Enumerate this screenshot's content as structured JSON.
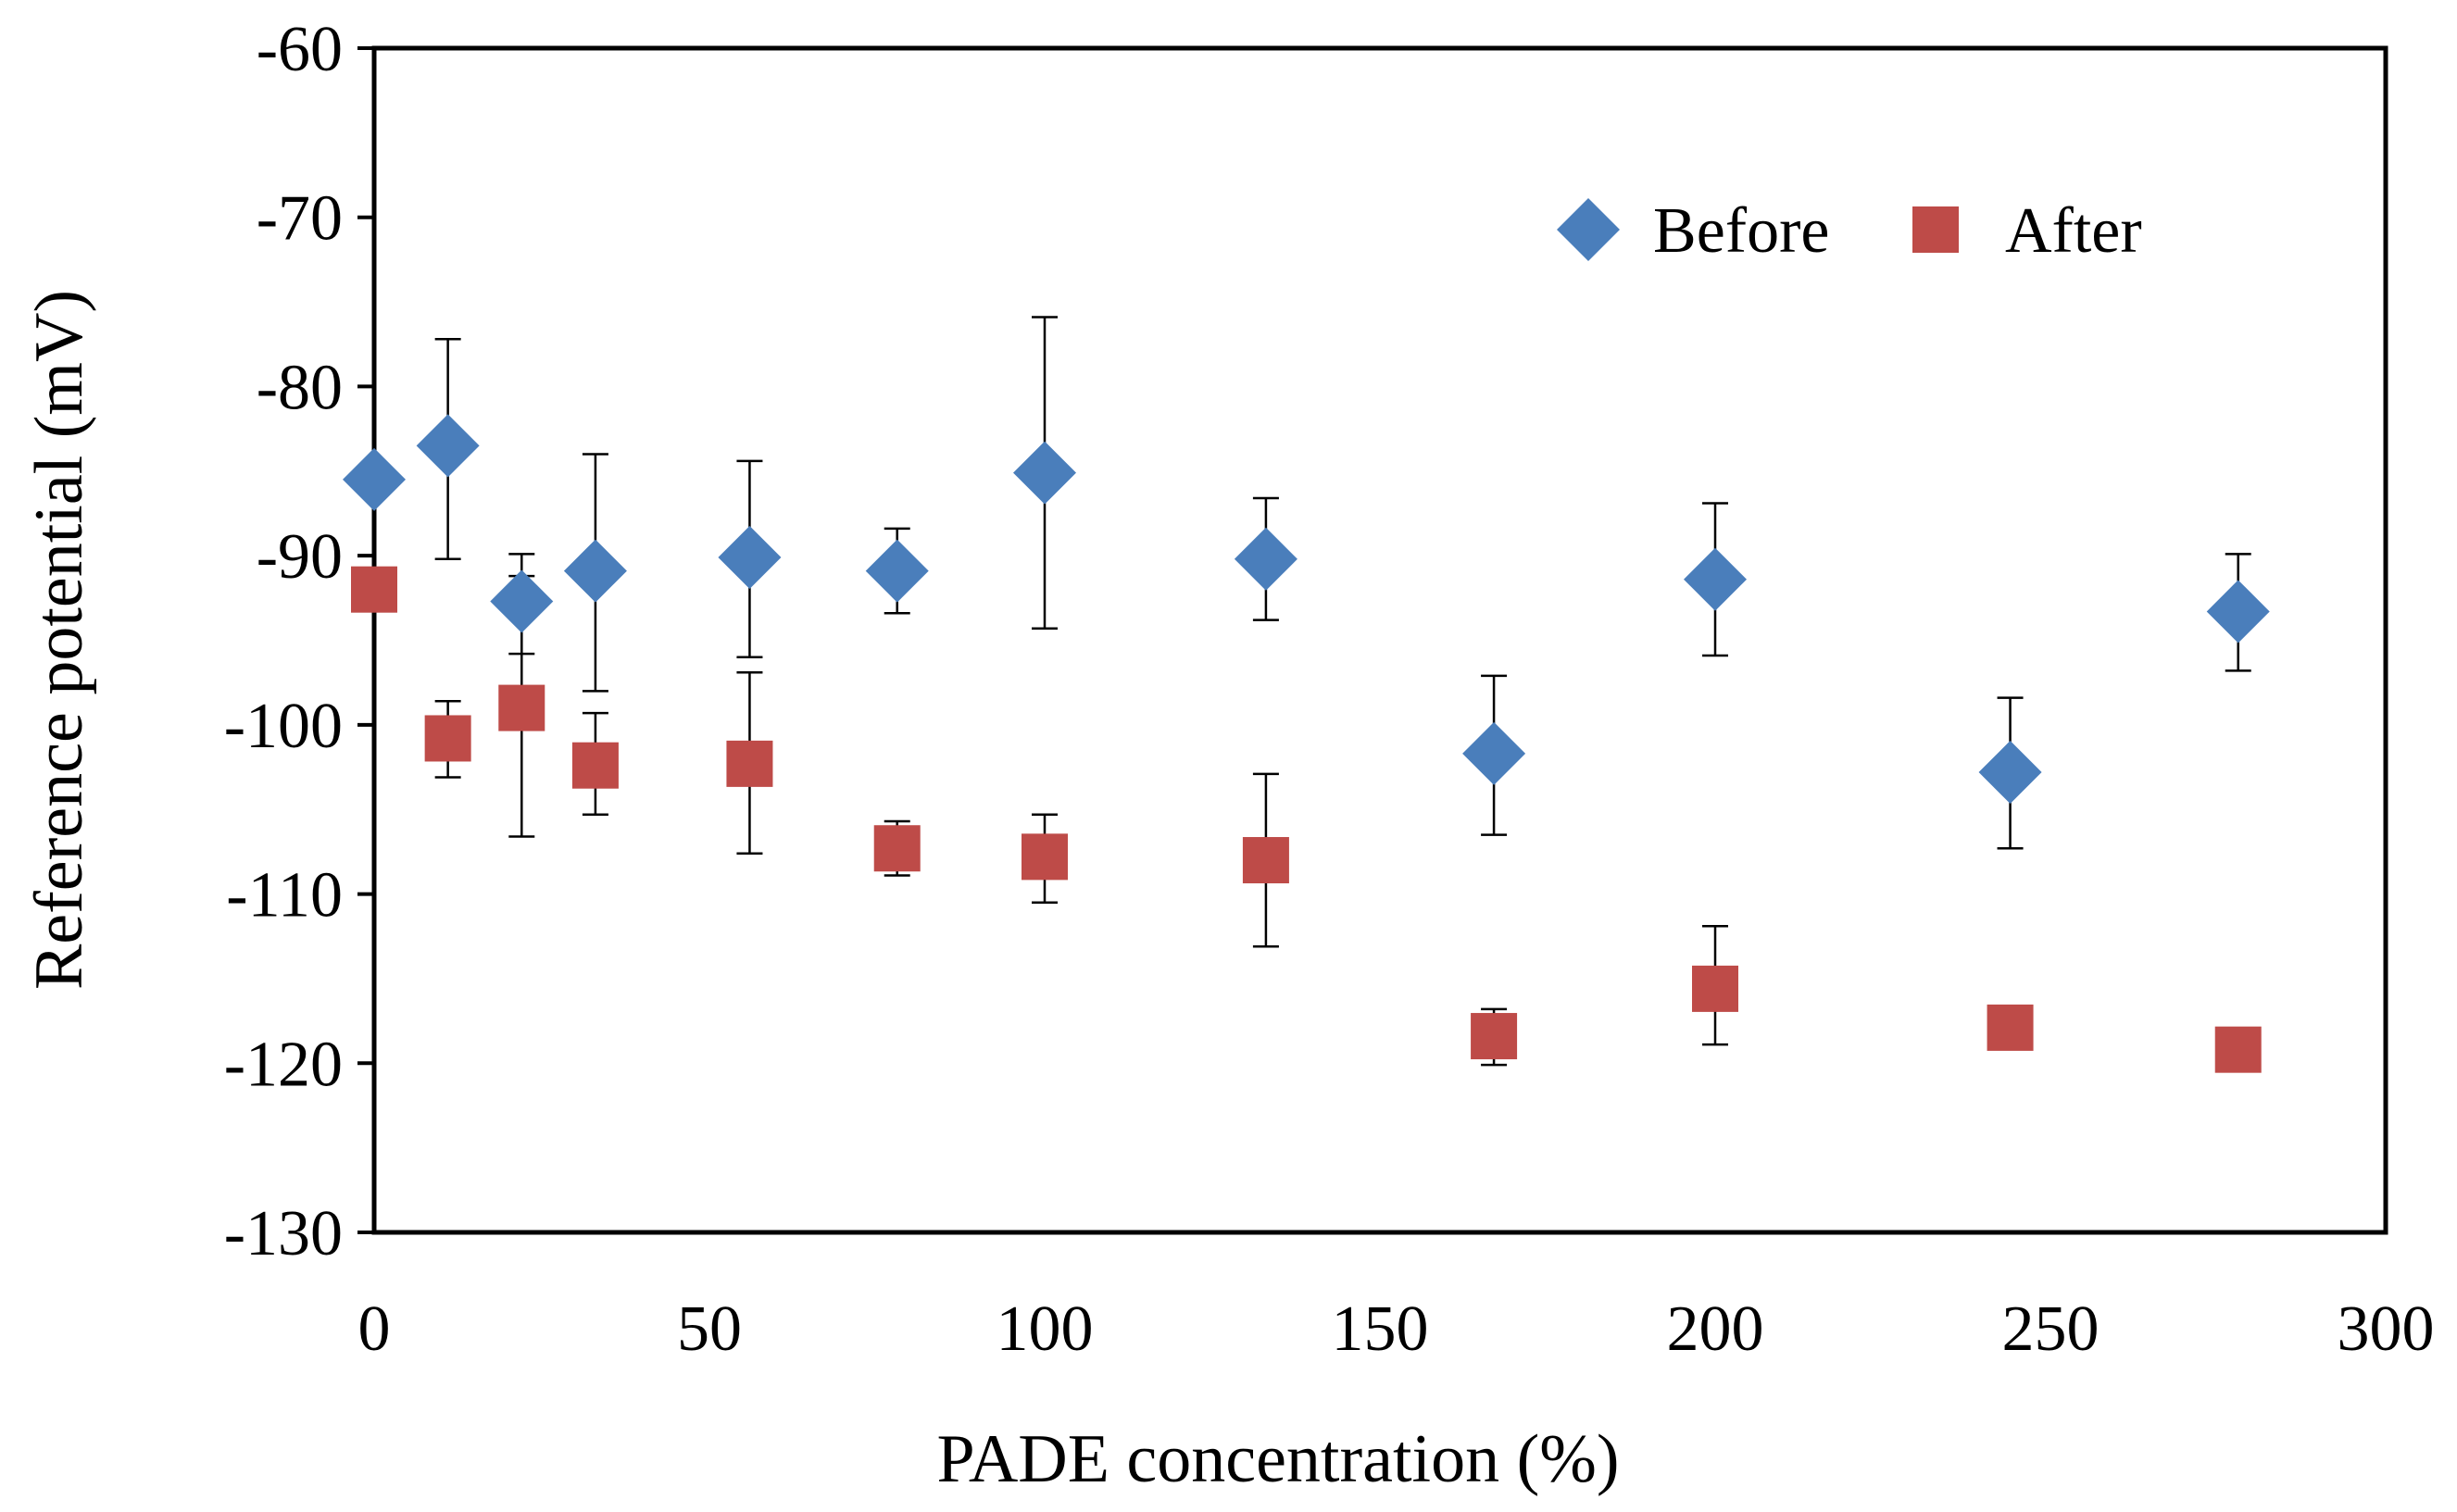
{
  "chart_data": {
    "type": "scatter",
    "title": "",
    "xlabel": "PADE concentration (%)",
    "ylabel": "Reference potential (mV)",
    "xlim": [
      0,
      300
    ],
    "ylim": [
      -130,
      -60
    ],
    "xticks": [
      0,
      50,
      100,
      150,
      200,
      250,
      300
    ],
    "yticks": [
      -60,
      -70,
      -80,
      -90,
      -100,
      -110,
      -120,
      -130
    ],
    "xtick_labels": [
      "0",
      "50",
      "100",
      "150",
      "200",
      "250",
      "300"
    ],
    "ytick_labels": [
      "-60",
      "-70",
      "-80",
      "-90",
      "-100",
      "-110",
      "-120",
      "-130"
    ],
    "grid": false,
    "legend_position": "top-right",
    "series": [
      {
        "name": "Before",
        "marker": "diamond",
        "color": "#4a7ebb",
        "x": [
          0,
          11,
          22,
          33,
          56,
          78,
          100,
          133,
          167,
          200,
          244,
          278
        ],
        "y": [
          -85.5,
          -83.5,
          -92.7,
          -90.9,
          -90.1,
          -90.9,
          -85.1,
          -90.2,
          -101.7,
          -91.4,
          -102.8,
          -93.3
        ],
        "err_low": [
          -85.5,
          -90.2,
          -95.8,
          -98.0,
          -96.0,
          -93.4,
          -94.3,
          -93.8,
          -106.5,
          -95.9,
          -107.3,
          -96.8
        ],
        "err_high": [
          -85.5,
          -77.2,
          -89.9,
          -84.0,
          -84.4,
          -88.4,
          -75.9,
          -86.6,
          -97.1,
          -86.9,
          -98.4,
          -89.9
        ]
      },
      {
        "name": "After",
        "marker": "square",
        "color": "#be4b48",
        "x": [
          0,
          11,
          22,
          33,
          56,
          78,
          100,
          133,
          167,
          200,
          244,
          278
        ],
        "y": [
          -92.0,
          -100.8,
          -99.0,
          -102.4,
          -102.3,
          -107.3,
          -107.8,
          -108.0,
          -118.4,
          -115.6,
          -117.9,
          -119.2
        ],
        "err_low": [
          -92.0,
          -103.1,
          -106.6,
          -105.3,
          -107.6,
          -108.9,
          -110.5,
          -113.1,
          -120.1,
          -118.9,
          -117.9,
          -119.2
        ],
        "err_high": [
          -92.0,
          -98.6,
          -91.2,
          -99.3,
          -96.9,
          -105.7,
          -105.3,
          -102.9,
          -116.8,
          -111.9,
          -117.9,
          -119.2
        ]
      }
    ]
  }
}
